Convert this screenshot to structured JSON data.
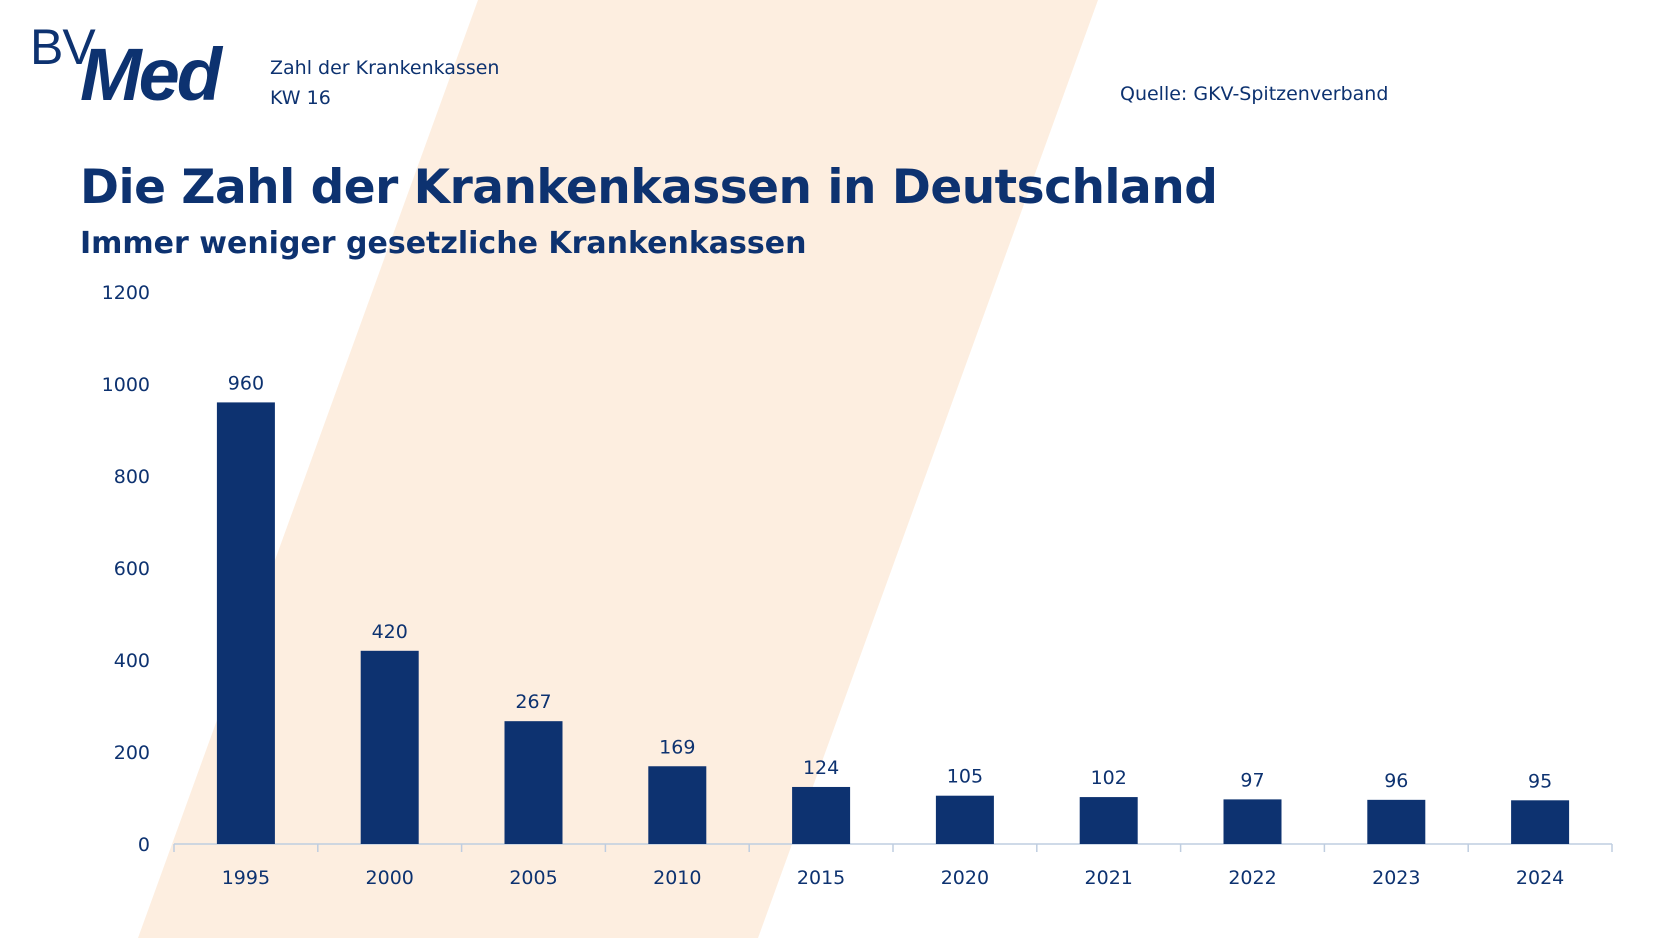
{
  "brand": {
    "logo_prefix": "BV",
    "logo_main": "Med"
  },
  "header": {
    "topic": "Zahl der Krankenkassen",
    "week": "KW 16",
    "source": "Quelle: GKV-Spitzenverband"
  },
  "colors": {
    "bar": "#0d3270",
    "text": "#0d3270",
    "stripe": "#fdeee0",
    "axis": "#bfcde0"
  },
  "chart_data": {
    "type": "bar",
    "title": "Die Zahl der Krankenkassen in Deutschland",
    "subtitle": "Immer weniger gesetzliche Krankenkassen",
    "categories": [
      "1995",
      "2000",
      "2005",
      "2010",
      "2015",
      "2020",
      "2021",
      "2022",
      "2023",
      "2024"
    ],
    "values": [
      960,
      420,
      267,
      169,
      124,
      105,
      102,
      97,
      96,
      95
    ],
    "yticks": [
      0,
      200,
      400,
      600,
      800,
      1000,
      1200
    ],
    "ylim": [
      0,
      1200
    ],
    "xlabel": "",
    "ylabel": "",
    "grid": false,
    "data_labels": true
  }
}
